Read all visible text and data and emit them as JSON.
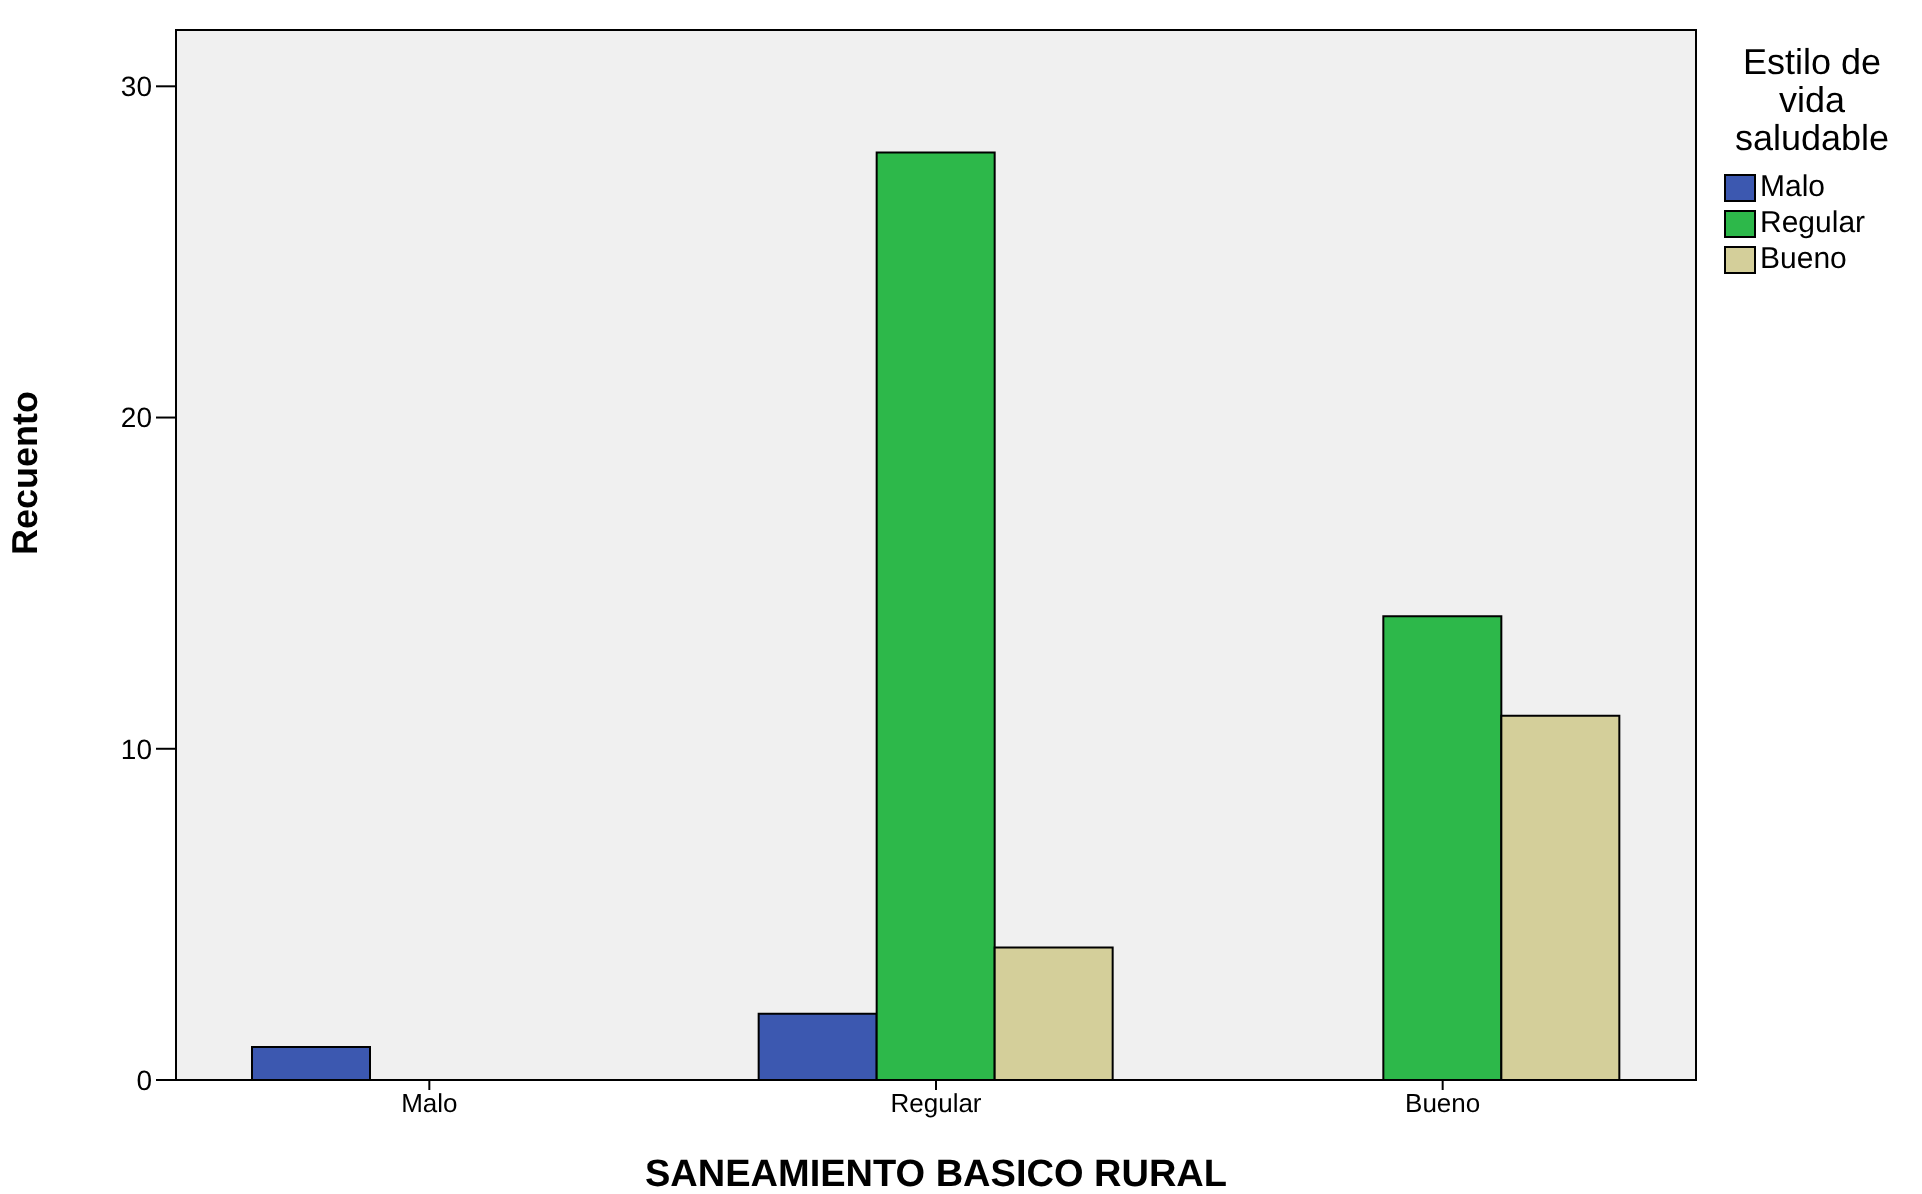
{
  "chart_data": {
    "type": "bar",
    "xlabel": "SANEAMIENTO BASICO RURAL",
    "ylabel": "Recuento",
    "legend_title": "Estilo de vida saludable",
    "categories": [
      "Malo",
      "Regular",
      "Bueno"
    ],
    "series": [
      {
        "name": "Malo",
        "color": "#3c58b0",
        "values": [
          1,
          2,
          null
        ]
      },
      {
        "name": "Regular",
        "color": "#2db84a",
        "values": [
          null,
          28,
          14
        ]
      },
      {
        "name": "Bueno",
        "color": "#d4cf9a",
        "values": [
          null,
          4,
          11
        ]
      }
    ],
    "ylim": [
      0,
      31.7
    ],
    "yticks": [
      0,
      10,
      20,
      30
    ],
    "legend": "right"
  }
}
